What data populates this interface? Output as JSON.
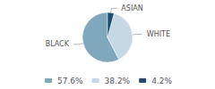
{
  "chart_data": {
    "type": "pie",
    "categories": [
      "BLACK",
      "WHITE",
      "ASIAN"
    ],
    "values": [
      57.6,
      38.2,
      4.2
    ],
    "value_labels": [
      "57.6%",
      "38.2%",
      "4.2%"
    ],
    "colors": [
      "#7fa8bc",
      "#c5d8e3",
      "#1e4d6b"
    ],
    "legend": "bottom"
  }
}
